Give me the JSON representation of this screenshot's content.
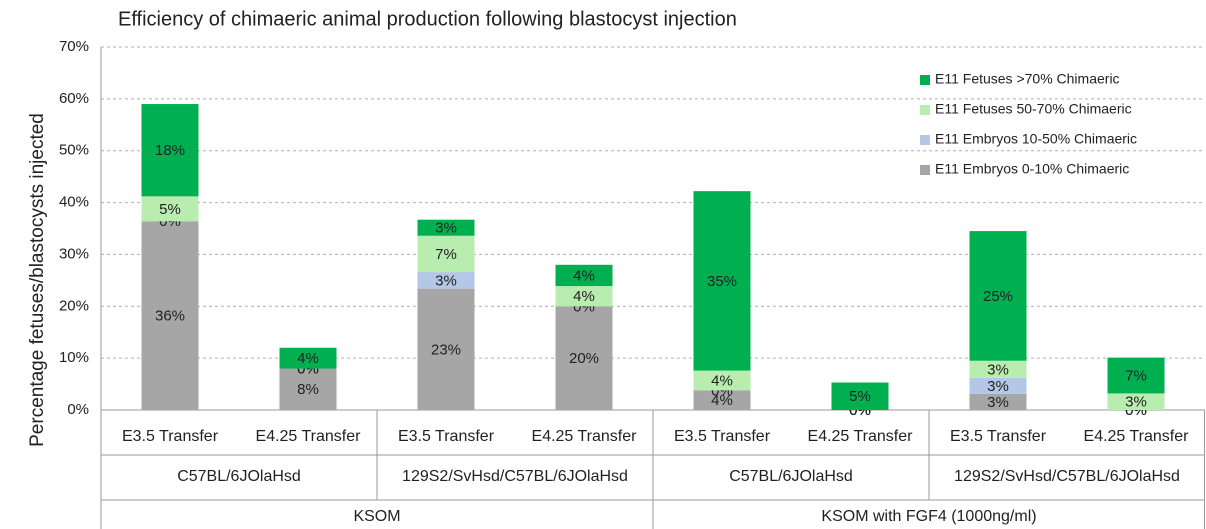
{
  "chart_data": {
    "type": "stacked_bar",
    "title": "Efficiency of chimaeric animal production following blastocyst injection",
    "y_label": "Percentage fetuses/blastocysts injected",
    "categories": [
      "E3.5 Transfer",
      "E4.25 Transfer",
      "E3.5 Transfer",
      "E4.25 Transfer",
      "E3.5 Transfer",
      "E4.25 Transfer",
      "E3.5 Transfer",
      "E4.25 Transfer"
    ],
    "strains": [
      "C57BL/6JOlaHsd",
      "129S2/SvHsd/C57BL/6JOlaHsd",
      "C57BL/6JOlaHsd",
      "129S2/SvHsd/C57BL/6JOlaHsd"
    ],
    "media": [
      "KSOM",
      "KSOM with FGF4 (1000ng/ml)"
    ],
    "series": [
      {
        "name": "E11 Embryos 0-10% Chimaeric",
        "color": "#a6a6a6",
        "values": [
          36.4,
          8,
          23.4,
          20,
          3.8,
          0,
          3.1,
          0
        ],
        "value_labels": [
          "36%",
          "8%",
          "23%",
          "20%",
          "4%",
          "0%",
          "3%",
          "0%"
        ]
      },
      {
        "name": "E11 Embryos 10-50% Chimaeric",
        "color": "#b4c7e7",
        "values": [
          0,
          0,
          3.2,
          0,
          0,
          0,
          3.1,
          0
        ],
        "value_labels": [
          "0%",
          "0%",
          "3%",
          "0%",
          "0%",
          "0%",
          "3%",
          "0%"
        ]
      },
      {
        "name": "E11 Fetuses 50-70% Chimaeric",
        "color": "#b9edb0",
        "values": [
          4.8,
          0,
          7,
          3.9,
          3.8,
          0,
          3.3,
          3.2
        ],
        "value_labels": [
          "5%",
          "0%",
          "7%",
          "4%",
          "4%",
          "0%",
          "3%",
          "3%"
        ]
      },
      {
        "name": "E11 Fetuses >70% Chimaeric",
        "color": "#00b050",
        "values": [
          17.8,
          4,
          3.1,
          4.1,
          34.6,
          5.3,
          25,
          6.9
        ],
        "value_labels": [
          "18%",
          "4%",
          "3%",
          "4%",
          "35%",
          "5%",
          "25%",
          "7%"
        ]
      }
    ],
    "ylim": [
      0,
      70
    ],
    "yticks": [
      {
        "value": 0,
        "label": "0%"
      },
      {
        "value": 10,
        "label": "10%"
      },
      {
        "value": 20,
        "label": "20%"
      },
      {
        "value": 30,
        "label": "30%"
      },
      {
        "value": 40,
        "label": "40%"
      },
      {
        "value": 50,
        "label": "50%"
      },
      {
        "value": 60,
        "label": "60%"
      },
      {
        "value": 70,
        "label": "70%"
      }
    ],
    "grid": true,
    "legend": "top-right"
  }
}
